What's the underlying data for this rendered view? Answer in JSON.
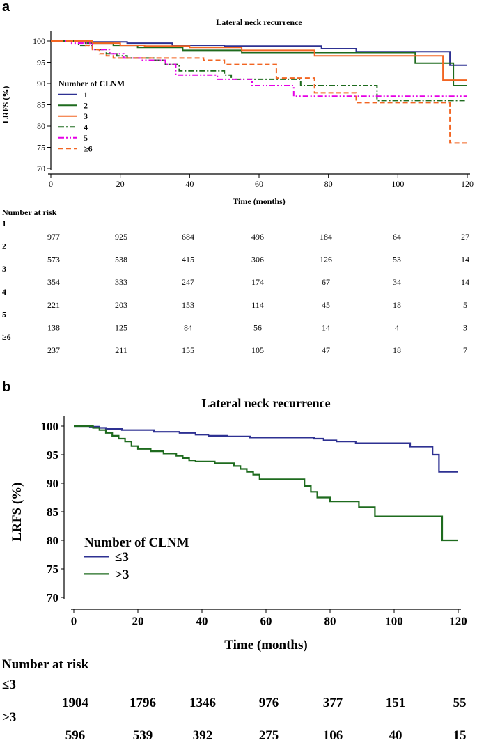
{
  "panel_a": {
    "letter": "a",
    "risk_header": "Number at risk"
  },
  "panel_b": {
    "letter": "b",
    "risk_header": "Number at risk"
  },
  "chart_data": [
    {
      "type": "line",
      "step": true,
      "title": "Lateral neck recurrence",
      "xlabel": "Time (months)",
      "ylabel": "LRFS (%)",
      "xlim": [
        0,
        120
      ],
      "ylim": [
        70,
        100
      ],
      "xticks": [
        0,
        20,
        40,
        60,
        80,
        100,
        120
      ],
      "yticks": [
        70,
        75,
        80,
        85,
        90,
        95,
        100
      ],
      "legend_title": "Number of CLNM",
      "legend_position": "middle-left",
      "series": [
        {
          "name": "1",
          "color": "#2e3192",
          "dash": "solid",
          "x": [
            0,
            8,
            22,
            35,
            50,
            78,
            88,
            115,
            120
          ],
          "y": [
            100,
            99.8,
            99.5,
            99.0,
            98.8,
            98.2,
            97.5,
            94.3,
            94.3
          ]
        },
        {
          "name": "2",
          "color": "#1e6b1e",
          "dash": "solid",
          "x": [
            0,
            10,
            18,
            25,
            38,
            55,
            105,
            116,
            120
          ],
          "y": [
            100,
            99.5,
            99.0,
            98.5,
            97.8,
            97.3,
            94.8,
            89.5,
            89.5
          ]
        },
        {
          "name": "3",
          "color": "#f26522",
          "dash": "solid",
          "x": [
            0,
            12,
            20,
            27,
            40,
            55,
            76,
            113,
            120
          ],
          "y": [
            100,
            99.5,
            99.0,
            98.8,
            98.5,
            97.8,
            96.5,
            90.8,
            90.8
          ]
        },
        {
          "name": "4",
          "color": "#1e6b1e",
          "dash": "dashdot",
          "x": [
            0,
            8,
            12,
            16,
            19,
            22,
            30,
            33,
            37,
            50,
            52,
            72,
            94,
            120
          ],
          "y": [
            100,
            99,
            98,
            97,
            96.5,
            96,
            95.5,
            94.5,
            93,
            92,
            91,
            89.5,
            86,
            86
          ]
        },
        {
          "name": "5",
          "color": "#e600e6",
          "dash": "dashdotdot",
          "x": [
            0,
            6,
            12,
            17,
            21,
            26,
            33,
            36,
            48,
            58,
            70,
            120
          ],
          "y": [
            100,
            99.5,
            98,
            97,
            96,
            95.5,
            94.5,
            92,
            91,
            89.5,
            87,
            87
          ]
        },
        {
          "name": "≥6",
          "color": "#f26522",
          "dash": "dashed",
          "x": [
            0,
            10,
            12,
            14,
            16,
            18,
            44,
            50,
            65,
            76,
            88,
            115,
            120
          ],
          "y": [
            100,
            99,
            98,
            97,
            96.5,
            96,
            95.5,
            94.5,
            91.3,
            87.8,
            85.5,
            76,
            76
          ]
        }
      ],
      "risk_table": {
        "timepoints": [
          0,
          20,
          40,
          60,
          80,
          100,
          120
        ],
        "rows": [
          {
            "label": "1",
            "values": [
              "977",
              "925",
              "684",
              "496",
              "184",
              "64",
              "27"
            ]
          },
          {
            "label": "2",
            "values": [
              "573",
              "538",
              "415",
              "306",
              "126",
              "53",
              "14"
            ]
          },
          {
            "label": "3",
            "values": [
              "354",
              "333",
              "247",
              "174",
              "67",
              "34",
              "14"
            ]
          },
          {
            "label": "4",
            "values": [
              "221",
              "203",
              "153",
              "114",
              "45",
              "18",
              "5"
            ]
          },
          {
            "label": "5",
            "values": [
              "138",
              "125",
              "84",
              "56",
              "14",
              "4",
              "3"
            ]
          },
          {
            "label": "≥6",
            "values": [
              "237",
              "211",
              "155",
              "105",
              "47",
              "18",
              "7"
            ]
          }
        ]
      }
    },
    {
      "type": "line",
      "step": true,
      "title": "Lateral neck recurrence",
      "xlabel": "Time (months)",
      "ylabel": "LRFS (%)",
      "xlim": [
        0,
        120
      ],
      "ylim": [
        70,
        100
      ],
      "xticks": [
        0,
        20,
        40,
        60,
        80,
        100,
        120
      ],
      "yticks": [
        70,
        75,
        80,
        85,
        90,
        95,
        100
      ],
      "legend_title": "Number of CLNM",
      "legend_position": "bottom-left",
      "series": [
        {
          "name": "≤3",
          "color": "#2e3192",
          "dash": "solid",
          "x": [
            0,
            5,
            8,
            10,
            15,
            25,
            33,
            38,
            42,
            48,
            55,
            75,
            78,
            82,
            88,
            105,
            112,
            114,
            120
          ],
          "y": [
            100,
            99.9,
            99.7,
            99.5,
            99.3,
            99.0,
            98.8,
            98.5,
            98.3,
            98.2,
            98.0,
            97.8,
            97.5,
            97.3,
            97.0,
            96.4,
            95.0,
            92.0,
            92.0
          ]
        },
        {
          "name": ">3",
          "color": "#1e6b1e",
          "dash": "solid",
          "x": [
            0,
            6,
            8,
            10,
            12,
            14,
            16,
            18,
            20,
            24,
            28,
            32,
            34,
            36,
            38,
            44,
            50,
            52,
            54,
            56,
            58,
            72,
            74,
            76,
            80,
            89,
            94,
            115,
            120
          ],
          "y": [
            100,
            99.7,
            99.3,
            98.8,
            98.3,
            97.8,
            97.3,
            96.5,
            96.0,
            95.6,
            95.2,
            94.8,
            94.4,
            94.0,
            93.8,
            93.5,
            93.0,
            92.5,
            92.0,
            91.5,
            90.7,
            89.5,
            88.5,
            87.5,
            86.8,
            85.8,
            84.2,
            80.0,
            80.0
          ]
        }
      ],
      "risk_table": {
        "timepoints": [
          0,
          20,
          40,
          60,
          80,
          100,
          120
        ],
        "rows": [
          {
            "label": "≤3",
            "values": [
              "1904",
              "1796",
              "1346",
              "976",
              "377",
              "151",
              "55"
            ]
          },
          {
            "label": ">3",
            "values": [
              "596",
              "539",
              "392",
              "275",
              "106",
              "40",
              "15"
            ]
          }
        ]
      }
    }
  ]
}
